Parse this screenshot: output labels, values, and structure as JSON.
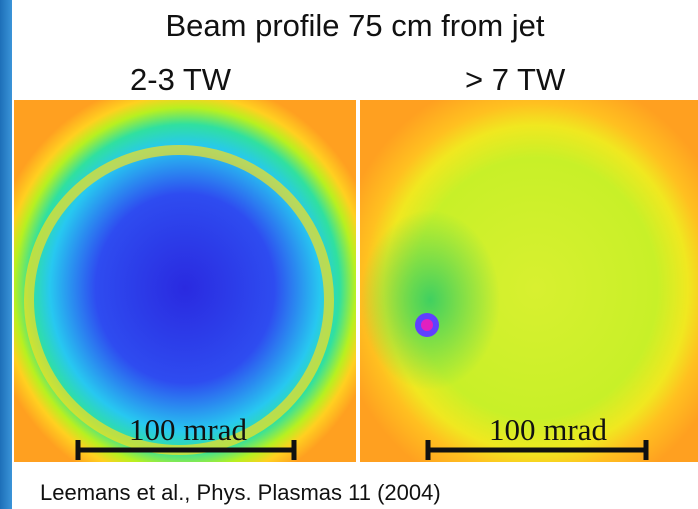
{
  "header": {
    "title": "Beam profile 75 cm from jet"
  },
  "panels": [
    {
      "label": "2-3 TW",
      "scale_label": "100 mrad"
    },
    {
      "label": "> 7 TW",
      "scale_label": "100 mrad"
    }
  ],
  "caption": "Leemans et al., Phys. Plasmas 11 (2004)"
}
